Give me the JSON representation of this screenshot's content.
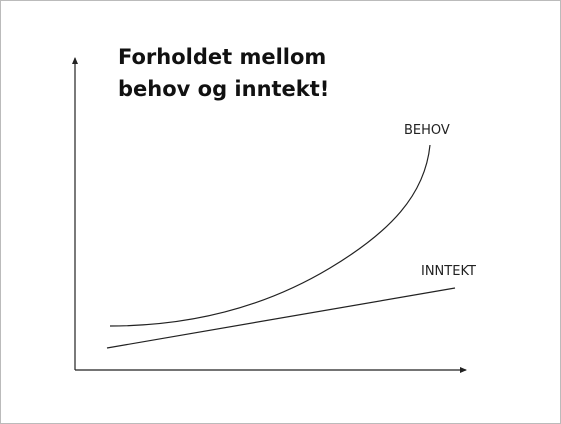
{
  "title_lines": [
    "Forholdet mellom",
    "behov og inntekt!"
  ],
  "curves": [
    {
      "label": "BEHOV"
    },
    {
      "label": "INNTEKT"
    }
  ]
}
